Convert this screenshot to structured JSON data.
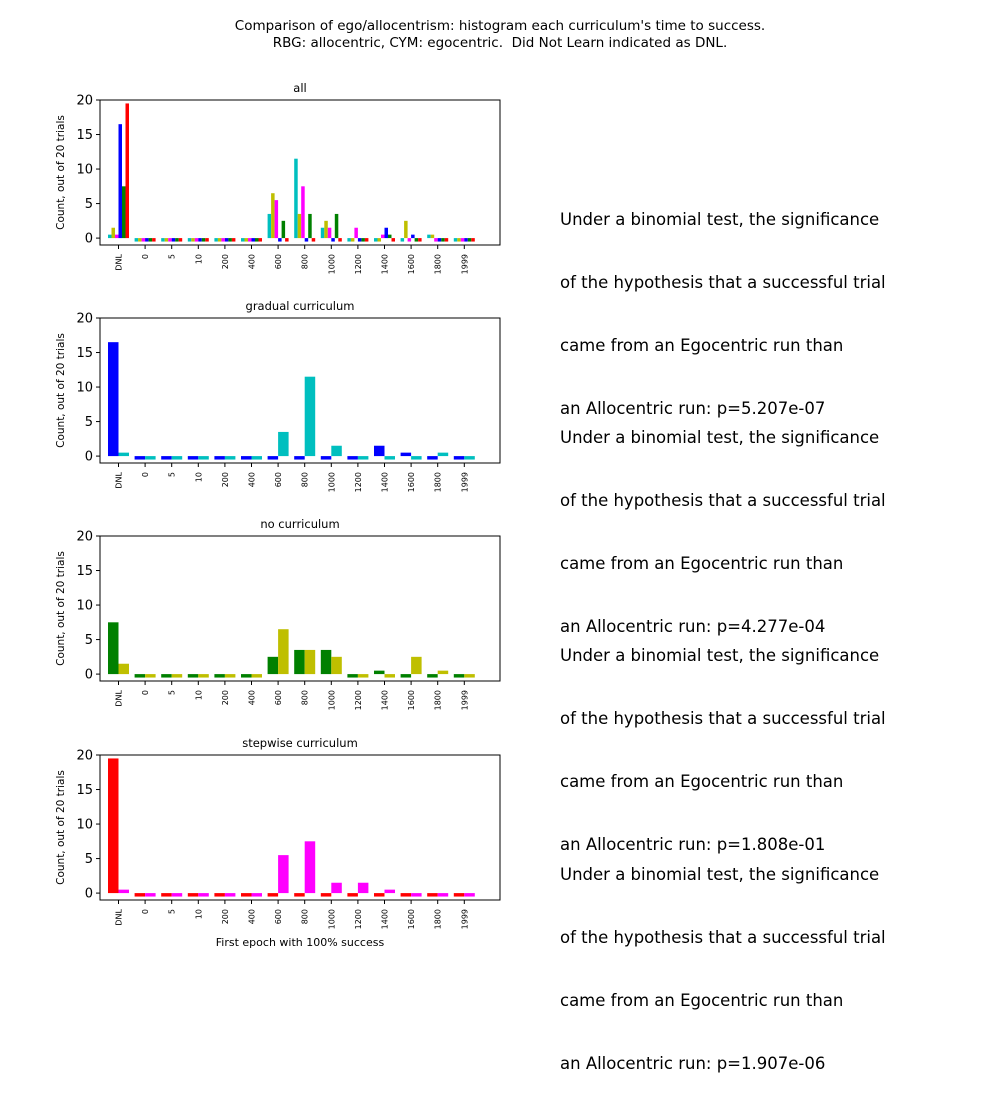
{
  "figure": {
    "title_line1": "Comparison of ego/allocentrism: histogram each curriculum's time to success.",
    "title_line2": "RBG: allocentric, CYM: egocentric.  Did Not Learn indicated as DNL.",
    "xlabel": "First epoch with 100% success"
  },
  "notes": [
    {
      "line1": "Under a binomial test, the significance",
      "line2": "of the hypothesis that a successful trial",
      "line3": "came from an Egocentric run than",
      "line4": "an Allocentric run: p=5.207e-07"
    },
    {
      "line1": "Under a binomial test, the significance",
      "line2": "of the hypothesis that a successful trial",
      "line3": "came from an Egocentric run than",
      "line4": "an Allocentric run: p=4.277e-04"
    },
    {
      "line1": "Under a binomial test, the significance",
      "line2": "of the hypothesis that a successful trial",
      "line3": "came from an Egocentric run than",
      "line4": "an Allocentric run: p=1.808e-01"
    },
    {
      "line1": "Under a binomial test, the significance",
      "line2": "of the hypothesis that a successful trial",
      "line3": "came from an Egocentric run than",
      "line4": "an Allocentric run: p=1.907e-06"
    }
  ],
  "chart_data": [
    {
      "type": "bar",
      "title": "all",
      "ylabel": "Count, out of 20 trials",
      "xlabel": "",
      "ylim": [
        -1,
        20
      ],
      "yticks": [
        0,
        5,
        10,
        15,
        20
      ],
      "categories": [
        "DNL",
        "0",
        "5",
        "10",
        "200",
        "400",
        "600",
        "800",
        "1000",
        "1200",
        "1400",
        "1600",
        "1800",
        "1999"
      ],
      "series": [
        {
          "color": "#00bfbf",
          "values": [
            0.5,
            -0.5,
            -0.5,
            -0.5,
            -0.5,
            -0.5,
            3.5,
            11.5,
            1.5,
            -0.5,
            -0.5,
            -0.5,
            0.5,
            -0.5
          ]
        },
        {
          "color": "#bfbf00",
          "values": [
            1.5,
            -0.5,
            -0.5,
            -0.5,
            -0.5,
            -0.5,
            6.5,
            3.5,
            2.5,
            -0.5,
            -0.5,
            2.5,
            0.5,
            -0.5
          ]
        },
        {
          "color": "#ff00ff",
          "values": [
            0.5,
            -0.5,
            -0.5,
            -0.5,
            -0.5,
            -0.5,
            5.5,
            7.5,
            1.5,
            1.5,
            0.5,
            -0.5,
            -0.5,
            -0.5
          ]
        },
        {
          "color": "#0000ff",
          "values": [
            16.5,
            -0.5,
            -0.5,
            -0.5,
            -0.5,
            -0.5,
            -0.5,
            -0.5,
            -0.5,
            -0.5,
            1.5,
            0.5,
            -0.5,
            -0.5
          ]
        },
        {
          "color": "#008000",
          "values": [
            7.5,
            -0.5,
            -0.5,
            -0.5,
            -0.5,
            -0.5,
            2.5,
            3.5,
            3.5,
            -0.5,
            0.5,
            -0.5,
            -0.5,
            -0.5
          ]
        },
        {
          "color": "#ff0000",
          "values": [
            19.5,
            -0.5,
            -0.5,
            -0.5,
            -0.5,
            -0.5,
            -0.5,
            -0.5,
            -0.5,
            -0.5,
            -0.5,
            -0.5,
            -0.5,
            -0.5
          ]
        }
      ]
    },
    {
      "type": "bar",
      "title": "gradual curriculum",
      "ylabel": "Count, out of 20 trials",
      "xlabel": "",
      "ylim": [
        -1,
        20
      ],
      "yticks": [
        0,
        5,
        10,
        15,
        20
      ],
      "categories": [
        "DNL",
        "0",
        "5",
        "10",
        "200",
        "400",
        "600",
        "800",
        "1000",
        "1200",
        "1400",
        "1600",
        "1800",
        "1999"
      ],
      "series": [
        {
          "color": "#0000ff",
          "values": [
            16.5,
            -0.5,
            -0.5,
            -0.5,
            -0.5,
            -0.5,
            -0.5,
            -0.5,
            -0.5,
            -0.5,
            1.5,
            0.5,
            -0.5,
            -0.5
          ]
        },
        {
          "color": "#00bfbf",
          "values": [
            0.5,
            -0.5,
            -0.5,
            -0.5,
            -0.5,
            -0.5,
            3.5,
            11.5,
            1.5,
            -0.5,
            -0.5,
            -0.5,
            0.5,
            -0.5
          ]
        }
      ]
    },
    {
      "type": "bar",
      "title": "no curriculum",
      "ylabel": "Count, out of 20 trials",
      "xlabel": "",
      "ylim": [
        -1,
        20
      ],
      "yticks": [
        0,
        5,
        10,
        15,
        20
      ],
      "categories": [
        "DNL",
        "0",
        "5",
        "10",
        "200",
        "400",
        "600",
        "800",
        "1000",
        "1200",
        "1400",
        "1600",
        "1800",
        "1999"
      ],
      "series": [
        {
          "color": "#008000",
          "values": [
            7.5,
            -0.5,
            -0.5,
            -0.5,
            -0.5,
            -0.5,
            2.5,
            3.5,
            3.5,
            -0.5,
            0.5,
            -0.5,
            -0.5,
            -0.5
          ]
        },
        {
          "color": "#bfbf00",
          "values": [
            1.5,
            -0.5,
            -0.5,
            -0.5,
            -0.5,
            -0.5,
            6.5,
            3.5,
            2.5,
            -0.5,
            -0.5,
            2.5,
            0.5,
            -0.5
          ]
        }
      ]
    },
    {
      "type": "bar",
      "title": "stepwise curriculum",
      "ylabel": "Count, out of 20 trials",
      "xlabel": "First epoch with 100% success",
      "ylim": [
        -1,
        20
      ],
      "yticks": [
        0,
        5,
        10,
        15,
        20
      ],
      "categories": [
        "DNL",
        "0",
        "5",
        "10",
        "200",
        "400",
        "600",
        "800",
        "1000",
        "1200",
        "1400",
        "1600",
        "1800",
        "1999"
      ],
      "series": [
        {
          "color": "#ff0000",
          "values": [
            19.5,
            -0.5,
            -0.5,
            -0.5,
            -0.5,
            -0.5,
            -0.5,
            -0.5,
            -0.5,
            -0.5,
            -0.5,
            -0.5,
            -0.5,
            -0.5
          ]
        },
        {
          "color": "#ff00ff",
          "values": [
            0.5,
            -0.5,
            -0.5,
            -0.5,
            -0.5,
            -0.5,
            5.5,
            7.5,
            1.5,
            1.5,
            0.5,
            -0.5,
            -0.5,
            -0.5
          ]
        }
      ]
    }
  ]
}
